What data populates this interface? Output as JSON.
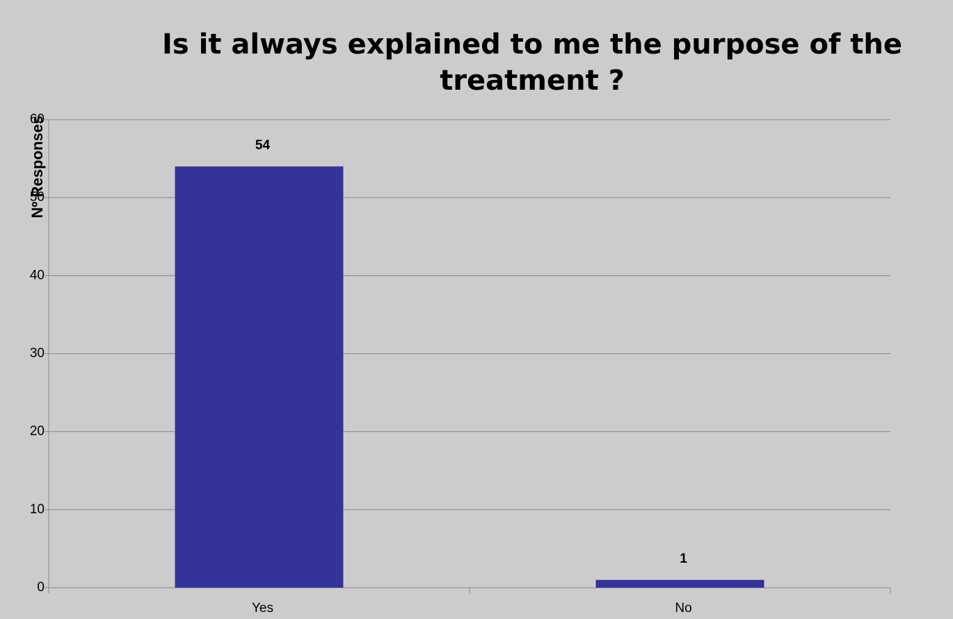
{
  "chart_data": {
    "type": "bar",
    "title": "Is it always explained to me the purpose of the treatment ?",
    "y_label": "Nº Responses",
    "categories": [
      "Yes",
      "No"
    ],
    "values": [
      54,
      1
    ],
    "color": "#333399",
    "ylim": [
      0,
      60
    ],
    "yticks": [
      0,
      10,
      20,
      30,
      40,
      50,
      60
    ],
    "grid": true
  }
}
